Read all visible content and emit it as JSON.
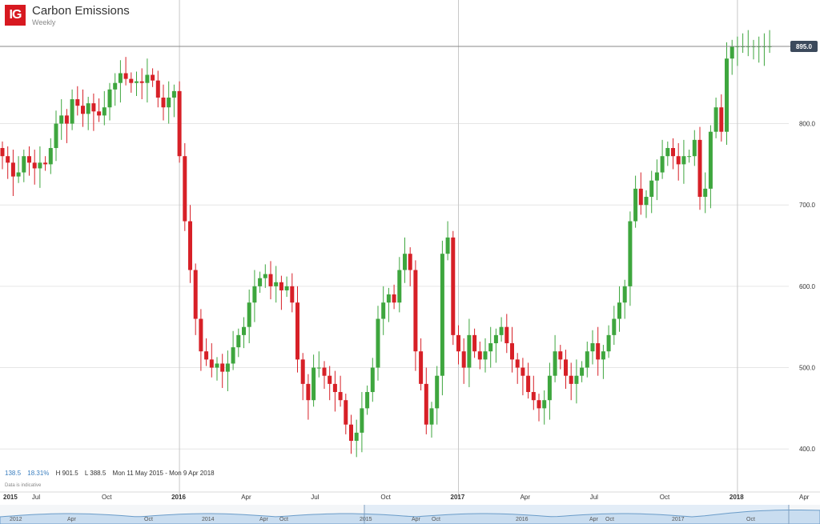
{
  "header": {
    "logo_text": "IG",
    "title": "Carbon Emissions",
    "subtitle": "Weekly"
  },
  "stats": {
    "change": "138.5",
    "change_pct": "18.31%",
    "high": "H 901.5",
    "low": "L 388.5",
    "range": "Mon 11 May 2015 - Mon 9 Apr 2018"
  },
  "note": "Data is indicative",
  "colors": {
    "up": "#3ea63e",
    "down": "#d72027",
    "grid": "#e6e6e6",
    "price_label_bg": "#3c4a5c",
    "navigator_fill": "#c9ddf0",
    "navigator_line": "#6a9cc9"
  },
  "chart_data": {
    "type": "candlestick",
    "title": "Carbon Emissions",
    "interval": "Weekly",
    "y_axis": {
      "ticks": [
        "400.0",
        "500.0",
        "600.0",
        "700.0",
        "800.0"
      ],
      "tick_values": [
        400,
        500,
        600,
        700,
        800
      ],
      "range": [
        352,
        952
      ]
    },
    "x_axis": {
      "labels": [
        "2015",
        "Jul",
        "Oct",
        "2016",
        "Apr",
        "Jul",
        "Oct",
        "2017",
        "Apr",
        "Jul",
        "Oct",
        "2018",
        "Apr"
      ],
      "label_week_index": [
        0,
        7,
        20,
        33,
        46,
        59,
        72,
        85,
        98,
        111,
        124,
        137,
        150
      ],
      "year_lines_week_index": [
        33,
        85,
        137
      ]
    },
    "current_price": {
      "value": 895.0,
      "label": "895.0"
    },
    "high": 901.5,
    "low": 388.5,
    "start": "Mon 11 May 2015",
    "end": "Mon 9 Apr 2018",
    "closes": [
      760,
      752,
      735,
      740,
      760,
      752,
      745,
      752,
      750,
      770,
      800,
      810,
      800,
      830,
      822,
      812,
      825,
      815,
      810,
      820,
      842,
      850,
      862,
      855,
      850,
      852,
      850,
      860,
      853,
      832,
      820,
      832,
      840,
      760,
      680,
      620,
      560,
      520,
      510,
      500,
      505,
      495,
      505,
      525,
      540,
      550,
      580,
      600,
      610,
      615,
      600,
      605,
      595,
      600,
      580,
      510,
      480,
      460,
      500,
      500,
      490,
      480,
      470,
      460,
      430,
      410,
      420,
      450,
      470,
      500,
      560,
      580,
      590,
      580,
      620,
      640,
      620,
      520,
      480,
      430,
      450,
      490,
      640,
      660,
      540,
      520,
      500,
      540,
      520,
      510,
      520,
      530,
      540,
      550,
      530,
      510,
      500,
      490,
      470,
      460,
      450,
      460,
      490,
      520,
      510,
      490,
      480,
      490,
      500,
      520,
      530,
      510,
      520,
      540,
      560,
      580,
      600,
      680,
      720,
      700,
      710,
      730,
      740,
      760,
      770,
      760,
      750,
      760,
      760,
      780,
      710,
      720,
      790,
      820,
      790,
      880,
      895,
      895,
      895,
      895,
      895,
      895,
      895,
      895
    ]
  },
  "navigator": {
    "labels": [
      "2012",
      "Apr",
      "Oct",
      "2014",
      "Apr",
      "Oct",
      "2015",
      "Apr",
      "Oct",
      "2016",
      "Apr",
      "Oct",
      "2017",
      "Oct"
    ]
  }
}
